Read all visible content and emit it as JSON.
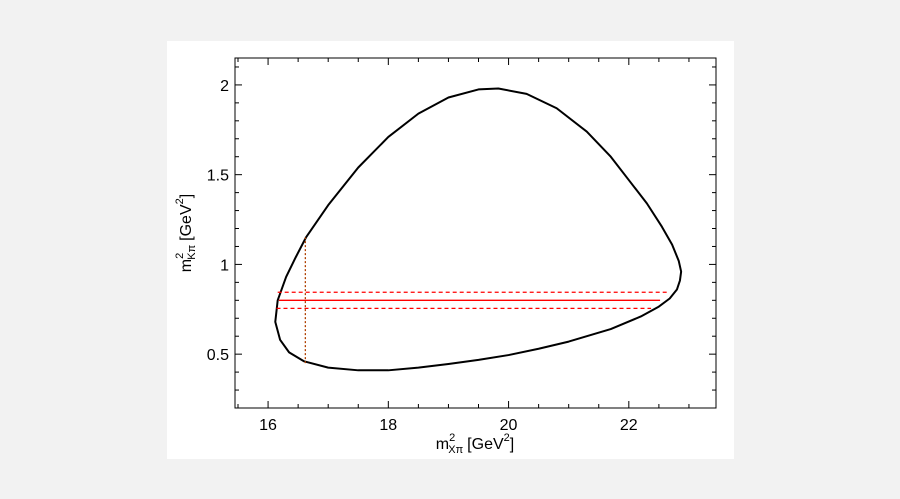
{
  "chart_data": {
    "type": "line",
    "title": "",
    "xlabel": {
      "base": "m",
      "sup": "2",
      "sub": "Xπ",
      "unit_prefix": "[GeV",
      "unit_sup": "2",
      "unit_suffix": "]"
    },
    "ylabel": {
      "base": "m",
      "sup": "2",
      "sub": "Kπ",
      "unit_prefix": "[GeV",
      "unit_sup": "2",
      "unit_suffix": "]"
    },
    "xlim": [
      15.45,
      23.45
    ],
    "ylim": [
      0.2,
      2.15
    ],
    "xticks": [
      16,
      18,
      20,
      22
    ],
    "yticks": [
      0.5,
      1,
      1.5,
      2
    ],
    "xtick_labels": [
      "16",
      "18",
      "20",
      "22"
    ],
    "ytick_labels": [
      "0.5",
      "1",
      "1.5",
      "2"
    ],
    "grid": false,
    "legend": "none",
    "series": [
      {
        "style": "solid",
        "color": "#000000",
        "x": [
          16.63,
          17.0,
          17.5,
          18.0,
          18.5,
          19.0,
          19.5,
          19.83,
          20.3,
          20.8,
          21.3,
          21.7,
          22.0,
          22.3,
          22.55,
          22.72,
          22.83,
          22.87,
          22.85,
          22.8,
          22.68,
          22.5,
          22.2,
          21.7,
          21.0,
          20.5,
          20.0,
          19.5,
          19.0,
          18.5,
          18.0,
          17.5,
          17.0,
          16.6,
          16.35,
          16.2,
          16.12,
          16.16,
          16.3,
          16.46,
          16.63
        ],
        "y": [
          1.15,
          1.33,
          1.54,
          1.71,
          1.84,
          1.93,
          1.975,
          1.98,
          1.95,
          1.87,
          1.74,
          1.6,
          1.47,
          1.34,
          1.21,
          1.11,
          1.02,
          0.96,
          0.91,
          0.86,
          0.81,
          0.765,
          0.71,
          0.64,
          0.57,
          0.53,
          0.495,
          0.468,
          0.445,
          0.425,
          0.41,
          0.41,
          0.425,
          0.46,
          0.51,
          0.58,
          0.68,
          0.8,
          0.93,
          1.04,
          1.15
        ]
      },
      {
        "style": "solid",
        "color": "#ff0000",
        "x": [
          16.18,
          22.52
        ],
        "y": [
          0.8,
          0.8
        ]
      },
      {
        "style": "dashed",
        "color": "#ff0000",
        "x": [
          16.16,
          22.63
        ],
        "y": [
          0.845,
          0.845
        ]
      },
      {
        "style": "dashed",
        "color": "#ff0000",
        "x": [
          16.14,
          22.37
        ],
        "y": [
          0.755,
          0.755
        ]
      },
      {
        "style": "dotted",
        "color": "#b04000",
        "x": [
          16.62,
          16.62
        ],
        "y": [
          0.45,
          1.15
        ]
      }
    ]
  },
  "colors": {
    "page": "#f2f2f2",
    "figure": "#ffffff",
    "contour": "#000000",
    "band": "#ff0000",
    "cut": "#b04000"
  }
}
